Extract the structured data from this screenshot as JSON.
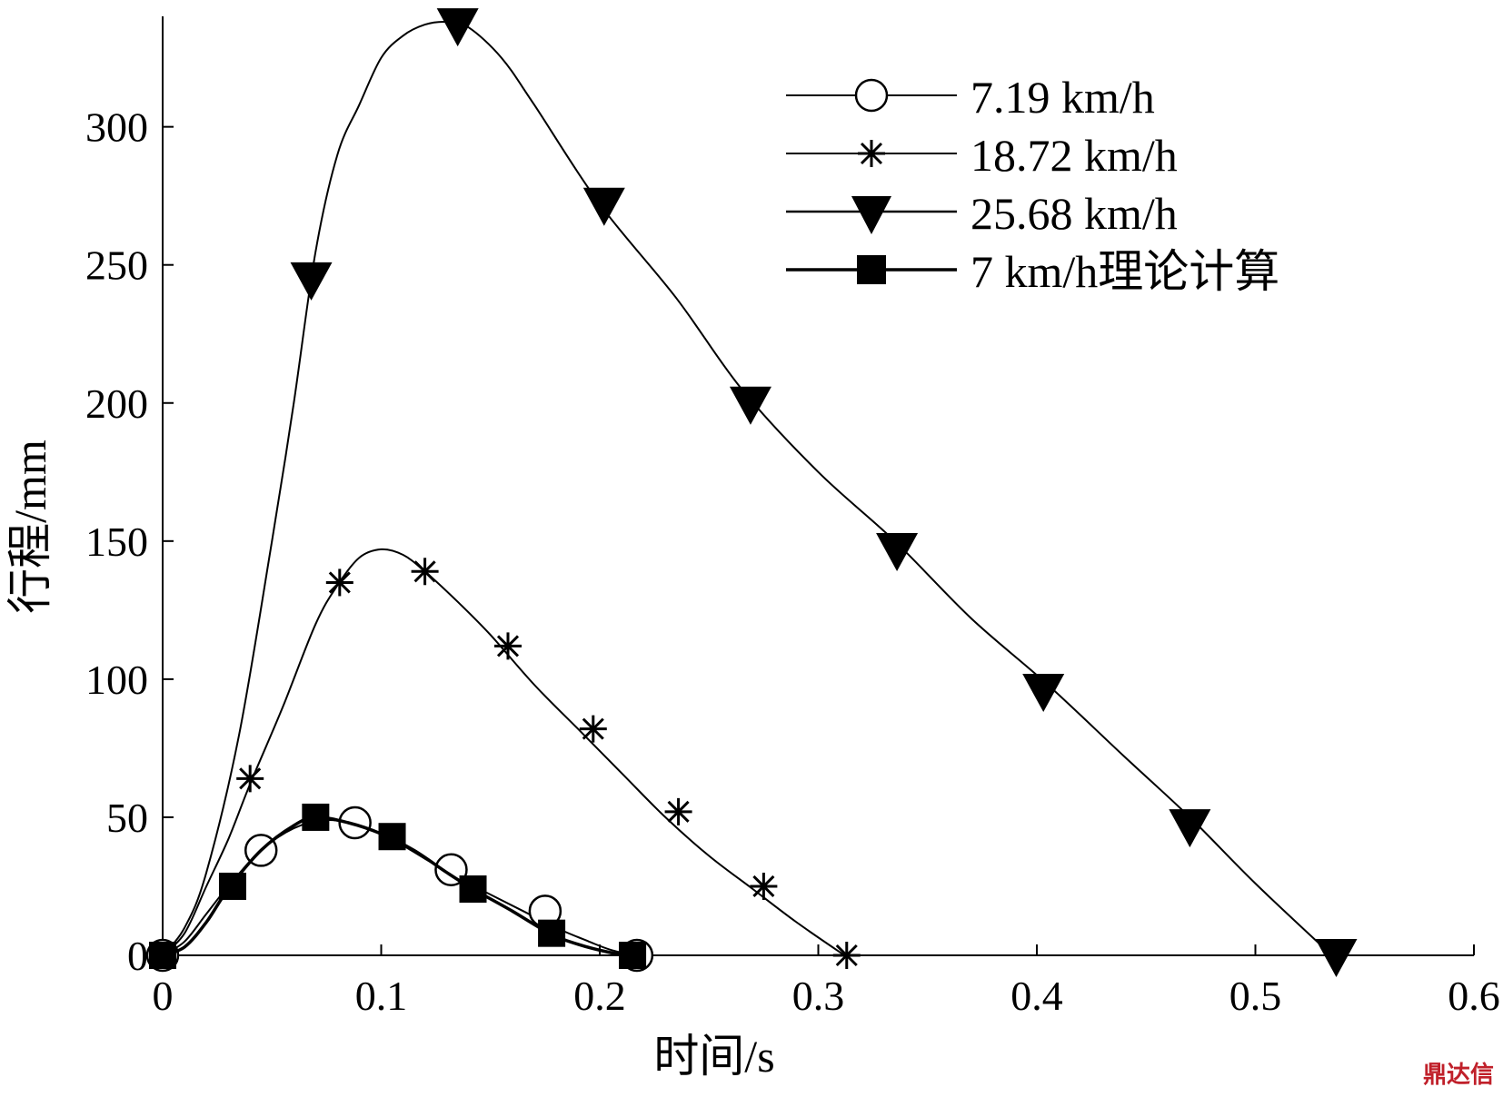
{
  "chart_data": {
    "type": "line",
    "xlabel": "时间/s",
    "ylabel": "行程/mm",
    "xlim": [
      0,
      0.6
    ],
    "ylim": [
      0,
      340
    ],
    "xticks": [
      0,
      0.1,
      0.2,
      0.3,
      0.4,
      0.5,
      0.6
    ],
    "xtick_labels": [
      "0",
      "0.1",
      "0.2",
      "0.3",
      "0.4",
      "0.5",
      "0.6"
    ],
    "yticks": [
      0,
      50,
      100,
      150,
      200,
      250,
      300
    ],
    "ytick_labels": [
      "0",
      "50",
      "100",
      "150",
      "200",
      "250",
      "300"
    ],
    "legend_position": "top-right",
    "grid": false,
    "series": [
      {
        "name": "7.19 km/h",
        "marker": "open-circle",
        "curve": [
          [
            0,
            0
          ],
          [
            0.01,
            5
          ],
          [
            0.02,
            15
          ],
          [
            0.03,
            25
          ],
          [
            0.045,
            38
          ],
          [
            0.06,
            46
          ],
          [
            0.075,
            49
          ],
          [
            0.09,
            47
          ],
          [
            0.105,
            42
          ],
          [
            0.12,
            35
          ],
          [
            0.135,
            28
          ],
          [
            0.15,
            22
          ],
          [
            0.165,
            16
          ],
          [
            0.18,
            10
          ],
          [
            0.195,
            5
          ],
          [
            0.205,
            2
          ],
          [
            0.216,
            0
          ]
        ],
        "markers": [
          [
            0,
            0
          ],
          [
            0.045,
            38
          ],
          [
            0.088,
            48
          ],
          [
            0.132,
            31
          ],
          [
            0.175,
            16
          ],
          [
            0.217,
            0
          ]
        ]
      },
      {
        "name": "18.72 km/h",
        "marker": "asterisk",
        "curve": [
          [
            0,
            0
          ],
          [
            0.01,
            8
          ],
          [
            0.02,
            25
          ],
          [
            0.03,
            42
          ],
          [
            0.04,
            62
          ],
          [
            0.055,
            90
          ],
          [
            0.07,
            120
          ],
          [
            0.08,
            134
          ],
          [
            0.09,
            144
          ],
          [
            0.1,
            147
          ],
          [
            0.11,
            145
          ],
          [
            0.12,
            139
          ],
          [
            0.135,
            128
          ],
          [
            0.15,
            116
          ],
          [
            0.17,
            98
          ],
          [
            0.19,
            82
          ],
          [
            0.21,
            66
          ],
          [
            0.23,
            50
          ],
          [
            0.25,
            36
          ],
          [
            0.27,
            24
          ],
          [
            0.29,
            12
          ],
          [
            0.312,
            0
          ]
        ],
        "markers": [
          [
            0,
            0
          ],
          [
            0.04,
            64
          ],
          [
            0.081,
            135
          ],
          [
            0.12,
            139
          ],
          [
            0.158,
            112
          ],
          [
            0.197,
            82
          ],
          [
            0.236,
            52
          ],
          [
            0.275,
            25
          ],
          [
            0.313,
            0
          ]
        ]
      },
      {
        "name": "25.68 km/h",
        "marker": "filled-triangle-down",
        "curve": [
          [
            0,
            0
          ],
          [
            0.01,
            10
          ],
          [
            0.02,
            30
          ],
          [
            0.035,
            80
          ],
          [
            0.05,
            150
          ],
          [
            0.06,
            200
          ],
          [
            0.07,
            255
          ],
          [
            0.08,
            290
          ],
          [
            0.09,
            308
          ],
          [
            0.1,
            325
          ],
          [
            0.11,
            333
          ],
          [
            0.12,
            337
          ],
          [
            0.13,
            338
          ],
          [
            0.14,
            336
          ],
          [
            0.155,
            325
          ],
          [
            0.17,
            308
          ],
          [
            0.2,
            272
          ],
          [
            0.235,
            238
          ],
          [
            0.265,
            205
          ],
          [
            0.3,
            175
          ],
          [
            0.335,
            150
          ],
          [
            0.37,
            122
          ],
          [
            0.405,
            98
          ],
          [
            0.44,
            72
          ],
          [
            0.47,
            50
          ],
          [
            0.5,
            26
          ],
          [
            0.535,
            0
          ]
        ],
        "markers": [
          [
            0.068,
            245
          ],
          [
            0.135,
            337
          ],
          [
            0.202,
            272
          ],
          [
            0.269,
            200
          ],
          [
            0.336,
            147
          ],
          [
            0.403,
            96
          ],
          [
            0.47,
            47
          ],
          [
            0.537,
            0
          ]
        ]
      },
      {
        "name": "7 km/h理论计算",
        "marker": "filled-square",
        "curve": [
          [
            0,
            0
          ],
          [
            0.01,
            3
          ],
          [
            0.02,
            12
          ],
          [
            0.03,
            24
          ],
          [
            0.045,
            38
          ],
          [
            0.06,
            47
          ],
          [
            0.07,
            50
          ],
          [
            0.085,
            48
          ],
          [
            0.1,
            44
          ],
          [
            0.115,
            38
          ],
          [
            0.13,
            30
          ],
          [
            0.142,
            24
          ],
          [
            0.16,
            16
          ],
          [
            0.177,
            8
          ],
          [
            0.19,
            4
          ],
          [
            0.205,
            1
          ],
          [
            0.215,
            0
          ]
        ],
        "markers": [
          [
            0,
            0
          ],
          [
            0.032,
            25
          ],
          [
            0.07,
            50
          ],
          [
            0.105,
            43
          ],
          [
            0.142,
            24
          ],
          [
            0.178,
            8
          ],
          [
            0.215,
            0
          ]
        ]
      }
    ]
  },
  "watermark": "鼎达信"
}
